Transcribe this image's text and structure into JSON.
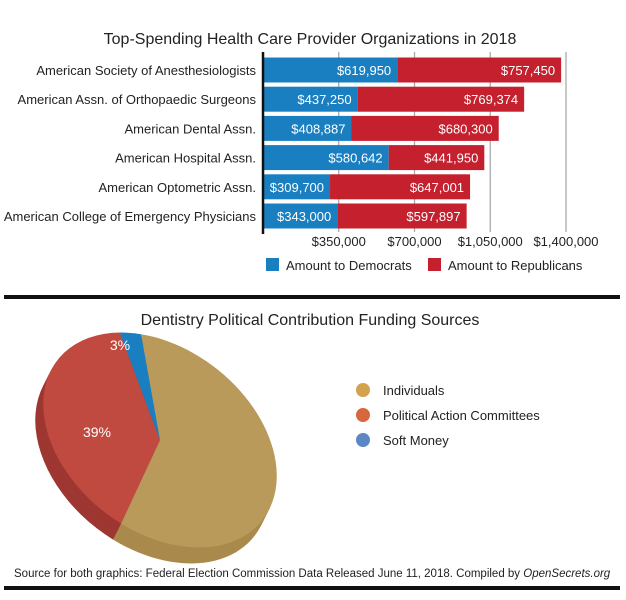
{
  "chart_data": [
    {
      "type": "bar",
      "orientation": "horizontal",
      "stacked": true,
      "title": "Top-Spending Health Care Provider Organizations in 2018",
      "categories": [
        "American Society of Anesthesiologists",
        "American Assn. of Orthopaedic Surgeons",
        "American Dental Assn.",
        "American Hospital Assn.",
        "American Optometric Assn.",
        "American College of Emergency Physicians"
      ],
      "series": [
        {
          "name": "Amount to Democrats",
          "color": "#1a7fc0",
          "values": [
            619950,
            437250,
            408887,
            580642,
            309700,
            343000
          ],
          "labels": [
            "$619,950",
            "$437,250",
            "$408,887",
            "$580,642",
            "$309,700",
            "$343,000"
          ]
        },
        {
          "name": "Amount to Republicans",
          "color": "#c4202e",
          "values": [
            757450,
            769374,
            680300,
            441950,
            647001,
            597897
          ],
          "labels": [
            "$757,450",
            "$769,374",
            "$680,300",
            "$441,950",
            "$647,001",
            "$597,897"
          ]
        }
      ],
      "xlim": [
        0,
        1400000
      ],
      "xticks": [
        350000,
        700000,
        1050000,
        1400000
      ],
      "xtick_labels": [
        "$350,000",
        "$700,000",
        "$1,050,000",
        "$1,400,000"
      ],
      "grid": true,
      "legend": "bottom"
    },
    {
      "type": "pie",
      "style": "3d",
      "title": "Dentistry Political Contribution Funding Sources",
      "slices": [
        {
          "name": "Individuals",
          "value": 58,
          "label": "58%",
          "color": "#b99a5a",
          "legend_color": "#d3a24c"
        },
        {
          "name": "Political Action Committees",
          "value": 39,
          "label": "39%",
          "color": "#c14a40",
          "legend_color": "#d8663e"
        },
        {
          "name": "Soft Money",
          "value": 3,
          "label": "3%",
          "color": "#1a7fc0",
          "legend_color": "#5b87c4"
        }
      ],
      "legend": "right"
    }
  ],
  "footer": {
    "text": "Source for both graphics: Federal Election Commission Data Released June 11, 2018. Compiled by ",
    "source": "OpenSecrets.org"
  }
}
